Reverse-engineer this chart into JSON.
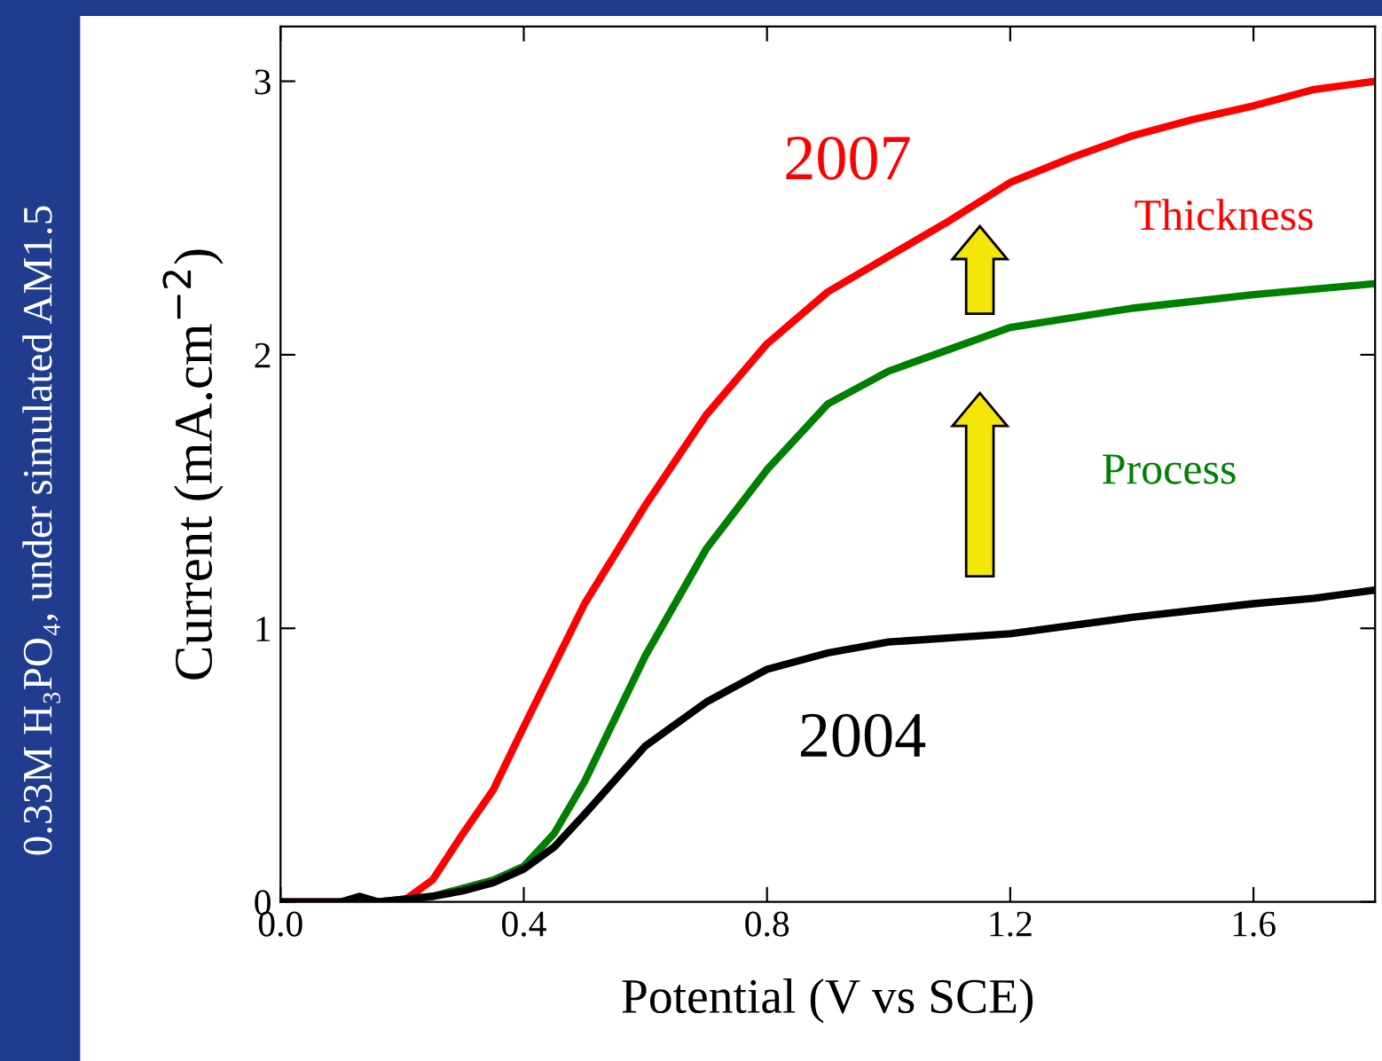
{
  "chart_data": {
    "type": "line",
    "xlabel": "Potential (V vs SCE)",
    "ylabel": "Current (mA.cm$^{−2}$)",
    "xlim": [
      0,
      1.8
    ],
    "ylim": [
      0,
      3.2
    ],
    "xticks": [
      {
        "value": 0,
        "label": "0.0"
      },
      {
        "value": 0.4,
        "label": "0.4"
      },
      {
        "value": 0.8,
        "label": "0.8"
      },
      {
        "value": 1.2,
        "label": "1.2"
      },
      {
        "value": 1.6,
        "label": "1.6"
      }
    ],
    "yticks": [
      0,
      1,
      2,
      3
    ],
    "grid": false,
    "legend": false,
    "marker": "none",
    "line_style": "solid",
    "series": [
      {
        "name": "2007",
        "color": "#ff0000",
        "x": [
          0,
          0.2,
          0.25,
          0.3,
          0.35,
          0.4,
          0.5,
          0.6,
          0.7,
          0.8,
          0.9,
          1.0,
          1.1,
          1.2,
          1.3,
          1.4,
          1.5,
          1.6,
          1.7,
          1.8
        ],
        "values": [
          0,
          0,
          0.08,
          0.25,
          0.41,
          0.64,
          1.09,
          1.45,
          1.78,
          2.04,
          2.23,
          2.36,
          2.49,
          2.63,
          2.72,
          2.8,
          2.86,
          2.91,
          2.97,
          3.0
        ]
      },
      {
        "color": "#008000",
        "x": [
          0.16,
          0.25,
          0.3,
          0.35,
          0.4,
          0.45,
          0.5,
          0.6,
          0.7,
          0.8,
          0.9,
          1.0,
          1.1,
          1.2,
          1.4,
          1.6,
          1.8
        ],
        "values": [
          0,
          0.02,
          0.05,
          0.08,
          0.13,
          0.25,
          0.44,
          0.9,
          1.29,
          1.58,
          1.82,
          1.94,
          2.02,
          2.1,
          2.17,
          2.22,
          2.26
        ]
      },
      {
        "name": "2004",
        "color": "#000000",
        "x": [
          0,
          0.1,
          0.13,
          0.16,
          0.25,
          0.3,
          0.35,
          0.4,
          0.45,
          0.5,
          0.6,
          0.7,
          0.8,
          0.9,
          1.0,
          1.2,
          1.4,
          1.6,
          1.7,
          1.8
        ],
        "values": [
          0,
          0,
          0.02,
          0,
          0.02,
          0.04,
          0.07,
          0.12,
          0.2,
          0.32,
          0.57,
          0.73,
          0.85,
          0.91,
          0.95,
          0.98,
          1.04,
          1.09,
          1.11,
          1.14
        ]
      }
    ],
    "annotations": [
      "Thickness",
      "Process",
      "0.33M H₃PO₄, under simulated AM1.5"
    ]
  }
}
